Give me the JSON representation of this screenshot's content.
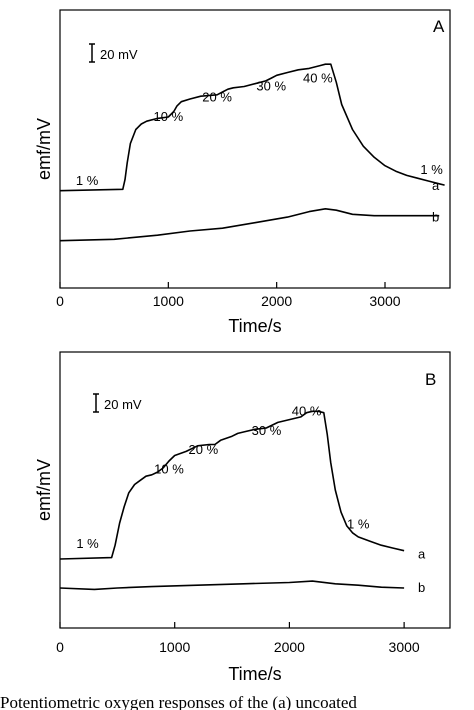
{
  "caption": "Potentiometric oxygen responses of the (a) uncoated",
  "chart_data": [
    {
      "type": "line",
      "panel_label": "A",
      "xlabel": "Time/s",
      "ylabel": "emf/mV",
      "xlim": [
        0,
        3600
      ],
      "ylim": [
        0,
        1
      ],
      "xticks": [
        0,
        1000,
        2000,
        3000
      ],
      "x_tick_labels": [
        "0",
        "1000",
        "2000",
        "3000"
      ],
      "scale_bar": {
        "label": "20 mV",
        "value_mv": 20
      },
      "annotations": [
        {
          "text": "1 %",
          "x": 250,
          "y": 0.37
        },
        {
          "text": "10 %",
          "x": 1000,
          "y": 0.6
        },
        {
          "text": "20 %",
          "x": 1450,
          "y": 0.67
        },
        {
          "text": "30 %",
          "x": 1950,
          "y": 0.71
        },
        {
          "text": "40 %",
          "x": 2380,
          "y": 0.74
        },
        {
          "text": "1 %",
          "x": 3430,
          "y": 0.41
        }
      ],
      "series": [
        {
          "name": "a",
          "x": [
            0,
            580,
            600,
            620,
            650,
            700,
            750,
            800,
            900,
            1000,
            1050,
            1080,
            1120,
            1200,
            1300,
            1450,
            1500,
            1550,
            1600,
            1700,
            1800,
            1900,
            1950,
            2000,
            2100,
            2200,
            2300,
            2400,
            2450,
            2500,
            2550,
            2600,
            2700,
            2800,
            2900,
            3000,
            3100,
            3200,
            3300,
            3400,
            3500,
            3550
          ],
          "y": [
            0.35,
            0.355,
            0.39,
            0.45,
            0.52,
            0.57,
            0.59,
            0.6,
            0.61,
            0.615,
            0.635,
            0.655,
            0.67,
            0.68,
            0.69,
            0.695,
            0.705,
            0.715,
            0.72,
            0.725,
            0.735,
            0.745,
            0.755,
            0.765,
            0.775,
            0.785,
            0.79,
            0.8,
            0.805,
            0.805,
            0.74,
            0.66,
            0.57,
            0.51,
            0.47,
            0.44,
            0.42,
            0.405,
            0.395,
            0.385,
            0.375,
            0.37
          ]
        },
        {
          "name": "b",
          "x": [
            0,
            500,
            900,
            1200,
            1500,
            1800,
            2100,
            2300,
            2450,
            2550,
            2700,
            2900,
            3200,
            3500
          ],
          "y": [
            0.17,
            0.175,
            0.19,
            0.205,
            0.215,
            0.235,
            0.255,
            0.275,
            0.285,
            0.28,
            0.265,
            0.26,
            0.26,
            0.26
          ]
        }
      ]
    },
    {
      "type": "line",
      "panel_label": "B",
      "xlabel": "Time/s",
      "ylabel": "emf/mV",
      "xlim": [
        0,
        3400
      ],
      "ylim": [
        0,
        1
      ],
      "xticks": [
        0,
        1000,
        2000,
        3000
      ],
      "x_tick_labels": [
        "0",
        "1000",
        "2000",
        "3000"
      ],
      "scale_bar": {
        "label": "20 mV",
        "value_mv": 20
      },
      "annotations": [
        {
          "text": "1 %",
          "x": 240,
          "y": 0.29
        },
        {
          "text": "10 %",
          "x": 950,
          "y": 0.56
        },
        {
          "text": "20 %",
          "x": 1250,
          "y": 0.63
        },
        {
          "text": "30 %",
          "x": 1800,
          "y": 0.7
        },
        {
          "text": "40 %",
          "x": 2150,
          "y": 0.77
        },
        {
          "text": "1 %",
          "x": 2600,
          "y": 0.36
        }
      ],
      "series": [
        {
          "name": "a",
          "x": [
            0,
            450,
            480,
            520,
            560,
            600,
            650,
            700,
            750,
            800,
            850,
            900,
            950,
            1000,
            1100,
            1200,
            1300,
            1350,
            1400,
            1500,
            1550,
            1600,
            1700,
            1800,
            1850,
            1900,
            2000,
            2100,
            2150,
            2200,
            2250,
            2300,
            2330,
            2360,
            2400,
            2450,
            2500,
            2550,
            2600,
            2700,
            2800,
            2900,
            3000
          ],
          "y": [
            0.25,
            0.255,
            0.3,
            0.38,
            0.44,
            0.49,
            0.52,
            0.535,
            0.55,
            0.555,
            0.565,
            0.58,
            0.605,
            0.625,
            0.64,
            0.66,
            0.665,
            0.665,
            0.68,
            0.695,
            0.705,
            0.71,
            0.72,
            0.725,
            0.735,
            0.745,
            0.755,
            0.765,
            0.78,
            0.785,
            0.785,
            0.78,
            0.7,
            0.6,
            0.5,
            0.42,
            0.37,
            0.345,
            0.33,
            0.315,
            0.3,
            0.29,
            0.28
          ]
        },
        {
          "name": "b",
          "x": [
            0,
            300,
            500,
            800,
            1200,
            1600,
            2000,
            2200,
            2400,
            2600,
            2800,
            3000
          ],
          "y": [
            0.145,
            0.14,
            0.145,
            0.15,
            0.155,
            0.16,
            0.165,
            0.17,
            0.16,
            0.155,
            0.148,
            0.145
          ]
        }
      ]
    }
  ]
}
